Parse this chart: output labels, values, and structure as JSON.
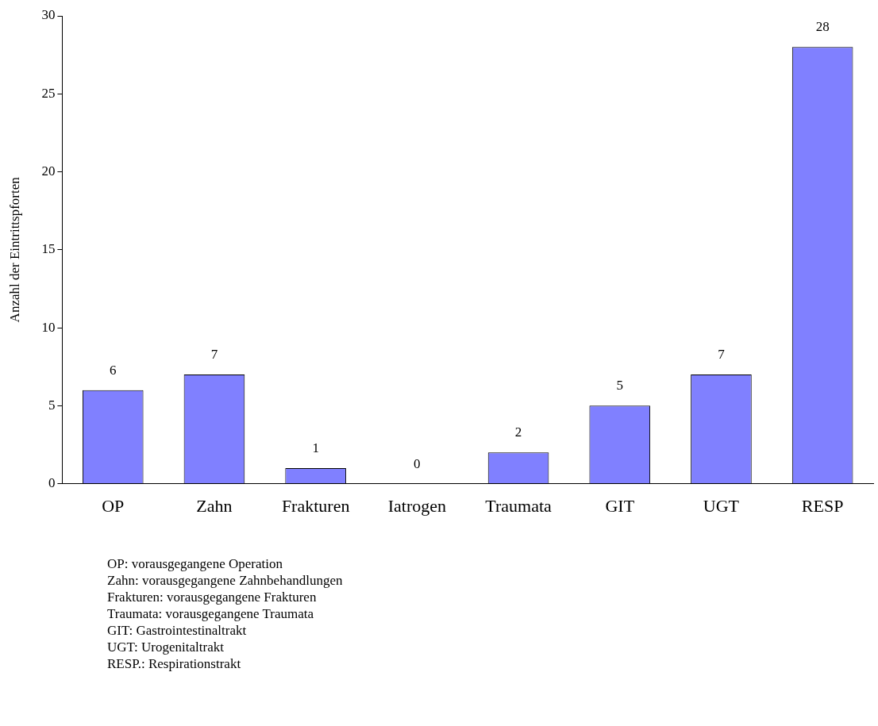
{
  "chart_data": {
    "type": "bar",
    "ylabel": "Anzahl der Eintrittspforten",
    "categories": [
      "OP",
      "Zahn",
      "Frakturen",
      "Iatrogen",
      "Traumata",
      "GIT",
      "UGT",
      "RESP"
    ],
    "values": [
      6,
      7,
      1,
      0,
      2,
      5,
      7,
      28
    ],
    "color": "#8080ff",
    "ylim": [
      0,
      30
    ],
    "yticks": [
      0,
      5,
      10,
      15,
      20,
      25,
      30
    ],
    "grid": false,
    "legend": false,
    "data_labels": true,
    "annotations": [
      "OP: vorausgegangene Operation",
      "Zahn: vorausgegangene Zahnbehandlungen",
      "Frakturen: vorausgegangene Frakturen",
      "Traumata: vorausgegangene Traumata",
      "GIT: Gastrointestinaltrakt",
      "UGT: Urogenitaltrakt",
      "RESP.: Respirationstrakt"
    ]
  }
}
